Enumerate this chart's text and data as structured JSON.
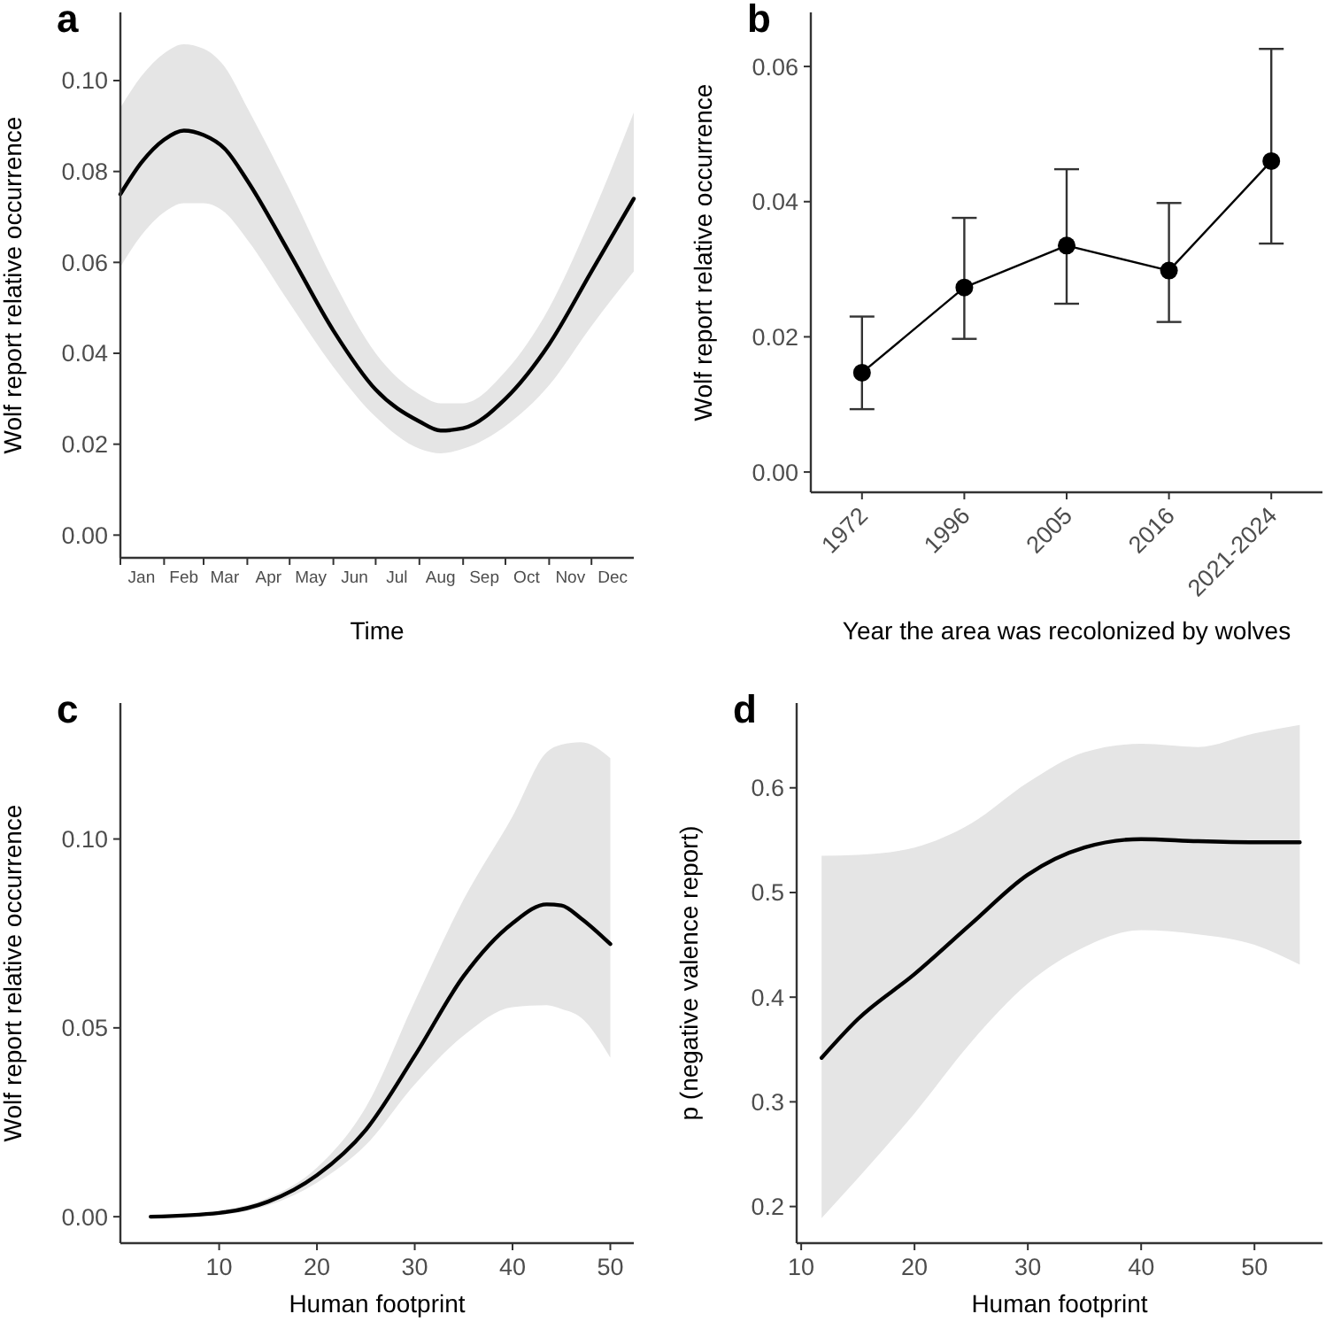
{
  "chart_data": [
    {
      "type": "line",
      "title": "a",
      "xlabel": "Time",
      "ylabel": "Wolf report relative occurrence",
      "x": [
        "--01-01",
        "--01-16",
        "--02-01",
        "--02-15",
        "--03-01",
        "--03-16",
        "--04-01",
        "--05-01",
        "--06-01",
        "--07-01",
        "--08-01",
        "--08-16",
        "--09-01",
        "--10-01",
        "--11-01",
        "--12-01",
        "--12-31"
      ],
      "xlim": [
        "--01-01",
        "--12-31"
      ],
      "xticks": [
        {
          "value": "--01-01",
          "label": null
        },
        {
          "value": "--02-01",
          "label": null
        },
        {
          "value": "--03-01",
          "label": null
        },
        {
          "value": "--04-01",
          "label": null
        },
        {
          "value": "--05-01",
          "label": null
        },
        {
          "value": "--06-01",
          "label": null
        },
        {
          "value": "--07-01",
          "label": null
        },
        {
          "value": "--08-01",
          "label": null
        },
        {
          "value": "--09-01",
          "label": null
        },
        {
          "value": "--10-01",
          "label": null
        },
        {
          "value": "--11-01",
          "label": null
        },
        {
          "value": "--12-01",
          "label": null
        },
        {
          "value": "--01-16",
          "label": "Jan"
        },
        {
          "value": "--02-15",
          "label": "Feb"
        },
        {
          "value": "--03-16",
          "label": "Mar"
        },
        {
          "value": "--04-16",
          "label": "Apr"
        },
        {
          "value": "--05-16",
          "label": "May"
        },
        {
          "value": "--06-16",
          "label": "Jun"
        },
        {
          "value": "--07-16",
          "label": "Jul"
        },
        {
          "value": "--08-16",
          "label": "Aug"
        },
        {
          "value": "--09-16",
          "label": "Sep"
        },
        {
          "value": "--10-16",
          "label": "Oct"
        },
        {
          "value": "--11-16",
          "label": "Nov"
        },
        {
          "value": "--12-16",
          "label": "Dec"
        }
      ],
      "ylim": [
        -0.005,
        0.115
      ],
      "yticks": [
        {
          "value": 0,
          "label": "0.00"
        },
        {
          "value": 0.02,
          "label": "0.02"
        },
        {
          "value": 0.04,
          "label": "0.04"
        },
        {
          "value": 0.06,
          "label": "0.06"
        },
        {
          "value": 0.08,
          "label": "0.08"
        },
        {
          "value": 0.1,
          "label": "0.10"
        }
      ],
      "series": [
        {
          "color": "#000000",
          "values": [
            0.075,
            0.082,
            0.087,
            0.089,
            0.088,
            0.085,
            0.078,
            0.062,
            0.045,
            0.032,
            0.025,
            0.023,
            0.0235,
            0.03,
            0.042,
            0.058,
            0.074
          ],
          "lower": [
            0.059,
            0.066,
            0.071,
            0.073,
            0.073,
            0.071,
            0.065,
            0.051,
            0.037,
            0.026,
            0.019,
            0.018,
            0.019,
            0.024,
            0.033,
            0.046,
            0.058
          ],
          "upper": [
            0.094,
            0.101,
            0.106,
            0.108,
            0.107,
            0.103,
            0.094,
            0.076,
            0.056,
            0.04,
            0.031,
            0.029,
            0.029,
            0.036,
            0.05,
            0.07,
            0.093
          ]
        }
      ]
    },
    {
      "type": "line",
      "title": "b",
      "xlabel": "Year the area was recolonized by wolves",
      "ylabel": "Wolf report relative occurrence",
      "categories": [
        "1972",
        "1996",
        "2005",
        "2016",
        "2021-2024"
      ],
      "ylim": [
        -0.003,
        0.068
      ],
      "yticks": [
        {
          "value": 0,
          "label": "0.00"
        },
        {
          "value": 0.02,
          "label": "0.02"
        },
        {
          "value": 0.04,
          "label": "0.04"
        },
        {
          "value": 0.06,
          "label": "0.06"
        }
      ],
      "marker": "circle",
      "series": [
        {
          "color": "#000000",
          "values": [
            0.0147,
            0.0273,
            0.0335,
            0.0298,
            0.046
          ],
          "errors": [
            [
              0.0093,
              0.023
            ],
            [
              0.0197,
              0.0376
            ],
            [
              0.0249,
              0.0448
            ],
            [
              0.0222,
              0.0398
            ],
            [
              0.0338,
              0.0626
            ]
          ]
        }
      ]
    },
    {
      "type": "line",
      "title": "c",
      "xlabel": "Human footprint",
      "ylabel": "Wolf report relative occurrence",
      "x": [
        3,
        10,
        15,
        20,
        25,
        30,
        35,
        40,
        43.5,
        45,
        47,
        50
      ],
      "xlim": [
        -0.1,
        52.4
      ],
      "xticks": [
        10,
        20,
        30,
        40,
        50
      ],
      "ylim": [
        -0.007,
        0.136
      ],
      "yticks": [
        {
          "value": 0,
          "label": "0.00"
        },
        {
          "value": 0.05,
          "label": "0.05"
        },
        {
          "value": 0.1,
          "label": "0.10"
        }
      ],
      "series": [
        {
          "color": "#000000",
          "values": [
            0,
            0.001,
            0.004,
            0.011,
            0.023,
            0.0426,
            0.0637,
            0.0777,
            0.0827,
            0.0824,
            0.079,
            0.0722
          ],
          "lower": [
            0,
            0.0005,
            0.003,
            0.009,
            0.019,
            0.035,
            0.048,
            0.0555,
            0.056,
            0.055,
            0.0527,
            0.0421
          ],
          "upper": [
            0,
            0.0015,
            0.005,
            0.013,
            0.029,
            0.057,
            0.084,
            0.106,
            0.123,
            0.125,
            0.1256,
            0.1214
          ]
        }
      ]
    },
    {
      "type": "line",
      "title": "d",
      "xlabel": "Human footprint",
      "ylabel": "p (negative valence report)",
      "x": [
        11.8,
        15,
        20,
        25,
        30,
        35,
        40,
        45,
        50,
        54
      ],
      "xlim": [
        9.6,
        56
      ],
      "xticks": [
        10,
        20,
        30,
        40,
        50
      ],
      "ylim": [
        0.165,
        0.681
      ],
      "yticks": [
        0.2,
        0.3,
        0.4,
        0.5,
        0.6
      ],
      "series": [
        {
          "color": "#000000",
          "values": [
            0.342,
            0.379,
            0.422,
            0.47,
            0.517,
            0.543,
            0.551,
            0.549,
            0.548,
            0.548
          ],
          "lower": [
            0.189,
            0.227,
            0.289,
            0.357,
            0.413,
            0.448,
            0.464,
            0.46,
            0.45,
            0.431
          ],
          "upper": [
            0.535,
            0.536,
            0.543,
            0.566,
            0.605,
            0.634,
            0.642,
            0.639,
            0.652,
            0.66
          ]
        }
      ]
    }
  ]
}
